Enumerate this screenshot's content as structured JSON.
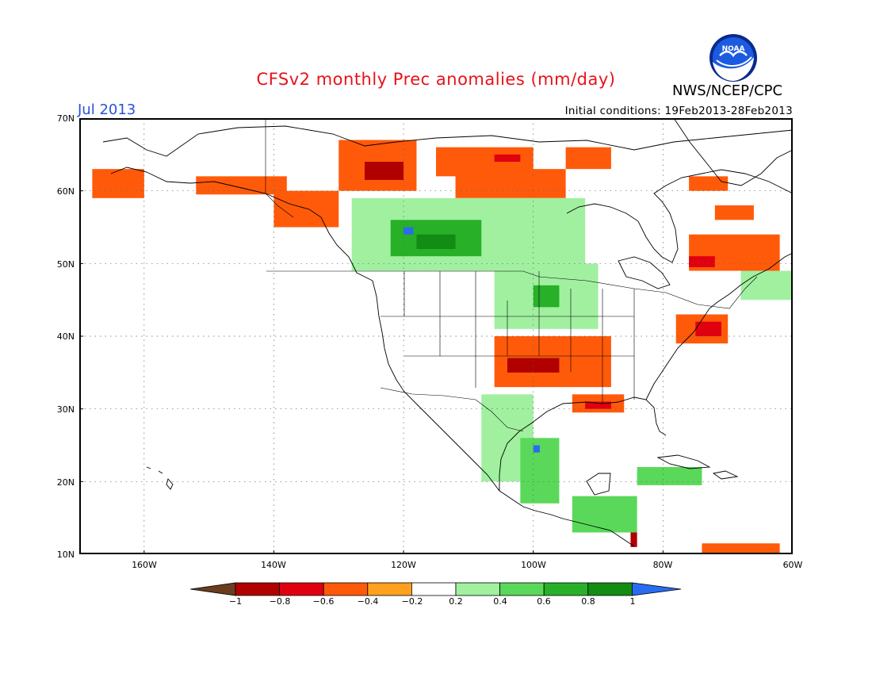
{
  "header": {
    "title": "CFSv2 monthly Prec anomalies (mm/day)",
    "month": "Jul 2013",
    "initial_conditions": "Initial conditions: 19Feb2013-28Feb2013",
    "agency": "NWS/NCEP/CPC",
    "logo_text": "NOAA"
  },
  "map": {
    "projection": "lat-lon",
    "lon_range": [
      -170,
      -60
    ],
    "lat_range": [
      10,
      70
    ],
    "lat_ticks": [
      {
        "value": 70,
        "label": "70N"
      },
      {
        "value": 60,
        "label": "60N"
      },
      {
        "value": 50,
        "label": "50N"
      },
      {
        "value": 40,
        "label": "40N"
      },
      {
        "value": 30,
        "label": "30N"
      },
      {
        "value": 20,
        "label": "20N"
      },
      {
        "value": 10,
        "label": "10N"
      }
    ],
    "lon_ticks": [
      {
        "value": -160,
        "label": "160W"
      },
      {
        "value": -140,
        "label": "140W"
      },
      {
        "value": -120,
        "label": "120W"
      },
      {
        "value": -100,
        "label": "100W"
      },
      {
        "value": -80,
        "label": "80W"
      },
      {
        "value": -60,
        "label": "60W"
      }
    ],
    "grid": "dotted",
    "anomaly_regions": [
      {
        "name": "alaska-west-dry",
        "level": -0.4,
        "lon": [
          -168,
          -160
        ],
        "lat": [
          59,
          63
        ]
      },
      {
        "name": "alaska-south-dry",
        "level": -0.4,
        "lon": [
          -152,
          -138
        ],
        "lat": [
          59.5,
          62
        ]
      },
      {
        "name": "yukon-dry",
        "level": -0.4,
        "lon": [
          -130,
          -118
        ],
        "lat": [
          60,
          67
        ]
      },
      {
        "name": "yukon-core-dry",
        "level": -0.8,
        "lon": [
          -126,
          -120
        ],
        "lat": [
          61.5,
          64
        ]
      },
      {
        "name": "nwt-dry",
        "level": -0.4,
        "lon": [
          -115,
          -100
        ],
        "lat": [
          62,
          66
        ]
      },
      {
        "name": "nwt-core-dry",
        "level": -0.6,
        "lon": [
          -106,
          -102
        ],
        "lat": [
          64,
          65
        ]
      },
      {
        "name": "canada-central-dry",
        "level": -0.4,
        "lon": [
          -112,
          -95
        ],
        "lat": [
          59,
          63
        ]
      },
      {
        "name": "hudson-north-dry",
        "level": -0.4,
        "lon": [
          -95,
          -88
        ],
        "lat": [
          63,
          66
        ]
      },
      {
        "name": "bc-coast-dry",
        "level": -0.4,
        "lon": [
          -140,
          -130
        ],
        "lat": [
          55,
          60
        ]
      },
      {
        "name": "canada-west-wet",
        "level": 0.2,
        "lon": [
          -128,
          -92
        ],
        "lat": [
          49,
          59
        ]
      },
      {
        "name": "canada-core-wet",
        "level": 0.6,
        "lon": [
          -122,
          -108
        ],
        "lat": [
          51,
          56
        ]
      },
      {
        "name": "canada-core-strong-wet",
        "level": 0.8,
        "lon": [
          -118,
          -112
        ],
        "lat": [
          52,
          54
        ]
      },
      {
        "name": "canada-local-max-wet",
        "level": 1.0,
        "lon": [
          -120,
          -118.5
        ],
        "lat": [
          54,
          55
        ]
      },
      {
        "name": "quebec-dry",
        "level": -0.4,
        "lon": [
          -76,
          -62
        ],
        "lat": [
          49,
          54
        ]
      },
      {
        "name": "quebec-core-dry",
        "level": -0.6,
        "lon": [
          -76,
          -72
        ],
        "lat": [
          49.5,
          51
        ]
      },
      {
        "name": "labrador-dry",
        "level": -0.4,
        "lon": [
          -72,
          -66
        ],
        "lat": [
          56,
          58
        ]
      },
      {
        "name": "greenland-coast-dry",
        "level": -0.4,
        "lon": [
          -76,
          -70
        ],
        "lat": [
          60,
          62
        ]
      },
      {
        "name": "maritimes-wet",
        "level": 0.2,
        "lon": [
          -68,
          -60
        ],
        "lat": [
          45,
          49
        ]
      },
      {
        "name": "plains-north-wet",
        "level": 0.2,
        "lon": [
          -106,
          -90
        ],
        "lat": [
          41,
          50
        ]
      },
      {
        "name": "plains-core-wet",
        "level": 0.6,
        "lon": [
          -100,
          -96
        ],
        "lat": [
          44,
          47
        ]
      },
      {
        "name": "southern-plains-dry",
        "level": -0.4,
        "lon": [
          -106,
          -88
        ],
        "lat": [
          33,
          40
        ]
      },
      {
        "name": "southern-plains-core-dry",
        "level": -0.8,
        "lon": [
          -104,
          -96
        ],
        "lat": [
          35,
          37
        ]
      },
      {
        "name": "gulf-coast-dry",
        "level": -0.4,
        "lon": [
          -94,
          -86
        ],
        "lat": [
          29.5,
          32
        ]
      },
      {
        "name": "gulf-coast-core-dry",
        "level": -0.6,
        "lon": [
          -92,
          -88
        ],
        "lat": [
          30,
          31
        ]
      },
      {
        "name": "northeast-dry",
        "level": -0.4,
        "lon": [
          -78,
          -70
        ],
        "lat": [
          39,
          43
        ]
      },
      {
        "name": "northeast-core-dry",
        "level": -0.6,
        "lon": [
          -75,
          -71
        ],
        "lat": [
          40,
          42
        ]
      },
      {
        "name": "mexico-west-wet",
        "level": 0.2,
        "lon": [
          -108,
          -100
        ],
        "lat": [
          20,
          32
        ]
      },
      {
        "name": "mexico-east-wet",
        "level": 0.4,
        "lon": [
          -102,
          -96
        ],
        "lat": [
          17,
          26
        ]
      },
      {
        "name": "mexico-local-max-wet",
        "level": 1.0,
        "lon": [
          -100,
          -99
        ],
        "lat": [
          24,
          25
        ]
      },
      {
        "name": "central-america-wet",
        "level": 0.4,
        "lon": [
          -94,
          -84
        ],
        "lat": [
          13,
          18
        ]
      },
      {
        "name": "cuba-wet",
        "level": 0.4,
        "lon": [
          -84,
          -74
        ],
        "lat": [
          19.5,
          22
        ]
      },
      {
        "name": "caribbean-dry",
        "level": -0.4,
        "lon": [
          -74,
          -62
        ],
        "lat": [
          10,
          11.5
        ]
      },
      {
        "name": "panama-dry",
        "level": -0.8,
        "lon": [
          -85,
          -84
        ],
        "lat": [
          11,
          13
        ]
      }
    ]
  },
  "colorbar": {
    "levels": [
      -1,
      -0.8,
      -0.6,
      -0.4,
      -0.2,
      0.2,
      0.4,
      0.6,
      0.8,
      1
    ],
    "tick_labels": [
      "−1",
      "−0.8",
      "−0.6",
      "−0.4",
      "−0.2",
      "0.2",
      "0.4",
      "0.6",
      "0.8",
      "1"
    ],
    "colors": [
      "#6b3d1e",
      "#b00000",
      "#e0000f",
      "#ff5a0a",
      "#ffa01e",
      "#ffffff",
      "#a0f0a0",
      "#5ad85a",
      "#28b028",
      "#138c13",
      "#2a6cf0"
    ]
  }
}
